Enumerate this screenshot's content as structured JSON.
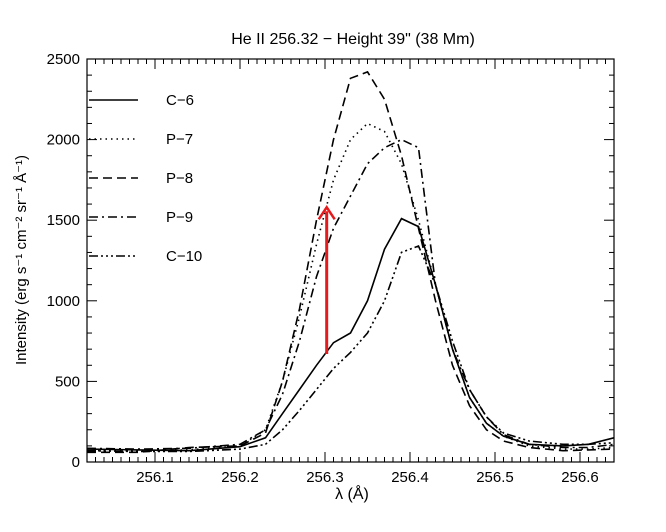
{
  "chart_data": {
    "type": "line",
    "title": "He II 256.32 − Height 39\" (38 Mm)",
    "xlabel": "λ (Å)",
    "ylabel": "Intensity (erg s⁻¹ cm⁻² sr⁻¹ Å⁻¹)",
    "xlim": [
      256.02,
      256.64
    ],
    "ylim": [
      0,
      2500
    ],
    "xticks": [
      256.1,
      256.2,
      256.3,
      256.4,
      256.5,
      256.6
    ],
    "xtick_labels": [
      "256.1",
      "256.2",
      "256.3",
      "256.4",
      "256.5",
      "256.6"
    ],
    "yticks": [
      0,
      500,
      1000,
      1500,
      2000,
      2500
    ],
    "ytick_labels": [
      "0",
      "500",
      "1000",
      "1500",
      "2000",
      "2500"
    ],
    "legend_position": "top-left",
    "series": [
      {
        "name": "C−6",
        "dash": "solid",
        "points": [
          [
            256.02,
            80
          ],
          [
            256.08,
            75
          ],
          [
            256.14,
            70
          ],
          [
            256.2,
            95
          ],
          [
            256.23,
            150
          ],
          [
            256.25,
            300
          ],
          [
            256.27,
            450
          ],
          [
            256.29,
            600
          ],
          [
            256.31,
            740
          ],
          [
            256.33,
            800
          ],
          [
            256.35,
            1000
          ],
          [
            256.37,
            1320
          ],
          [
            256.39,
            1510
          ],
          [
            256.41,
            1460
          ],
          [
            256.43,
            1100
          ],
          [
            256.45,
            700
          ],
          [
            256.47,
            400
          ],
          [
            256.49,
            240
          ],
          [
            256.51,
            160
          ],
          [
            256.54,
            110
          ],
          [
            256.58,
            100
          ],
          [
            256.61,
            110
          ],
          [
            256.64,
            150
          ]
        ]
      },
      {
        "name": "P−7",
        "dash": "dotted",
        "points": [
          [
            256.02,
            70
          ],
          [
            256.08,
            70
          ],
          [
            256.14,
            75
          ],
          [
            256.2,
            100
          ],
          [
            256.23,
            200
          ],
          [
            256.25,
            500
          ],
          [
            256.27,
            900
          ],
          [
            256.29,
            1350
          ],
          [
            256.31,
            1750
          ],
          [
            256.33,
            2000
          ],
          [
            256.35,
            2100
          ],
          [
            256.37,
            2050
          ],
          [
            256.39,
            1850
          ],
          [
            256.41,
            1500
          ],
          [
            256.43,
            1100
          ],
          [
            256.45,
            700
          ],
          [
            256.47,
            400
          ],
          [
            256.49,
            240
          ],
          [
            256.51,
            160
          ],
          [
            256.54,
            100
          ],
          [
            256.58,
            80
          ],
          [
            256.61,
            80
          ],
          [
            256.64,
            90
          ]
        ]
      },
      {
        "name": "P−8",
        "dash": "dashed",
        "points": [
          [
            256.02,
            60
          ],
          [
            256.08,
            60
          ],
          [
            256.14,
            90
          ],
          [
            256.2,
            100
          ],
          [
            256.23,
            180
          ],
          [
            256.25,
            500
          ],
          [
            256.27,
            950
          ],
          [
            256.29,
            1500
          ],
          [
            256.31,
            2000
          ],
          [
            256.33,
            2380
          ],
          [
            256.35,
            2420
          ],
          [
            256.37,
            2250
          ],
          [
            256.39,
            1900
          ],
          [
            256.41,
            1450
          ],
          [
            256.43,
            1000
          ],
          [
            256.45,
            600
          ],
          [
            256.47,
            350
          ],
          [
            256.49,
            200
          ],
          [
            256.51,
            130
          ],
          [
            256.54,
            90
          ],
          [
            256.58,
            70
          ],
          [
            256.61,
            75
          ],
          [
            256.64,
            80
          ]
        ]
      },
      {
        "name": "P−9",
        "dash": "dashdot",
        "points": [
          [
            256.02,
            85
          ],
          [
            256.08,
            80
          ],
          [
            256.14,
            85
          ],
          [
            256.2,
            110
          ],
          [
            256.23,
            200
          ],
          [
            256.25,
            420
          ],
          [
            256.27,
            750
          ],
          [
            256.29,
            1150
          ],
          [
            256.31,
            1450
          ],
          [
            256.33,
            1650
          ],
          [
            256.35,
            1850
          ],
          [
            256.37,
            1950
          ],
          [
            256.39,
            2000
          ],
          [
            256.41,
            1950
          ],
          [
            256.43,
            1100
          ],
          [
            256.45,
            700
          ],
          [
            256.47,
            450
          ],
          [
            256.49,
            280
          ],
          [
            256.51,
            170
          ],
          [
            256.54,
            110
          ],
          [
            256.58,
            90
          ],
          [
            256.61,
            90
          ],
          [
            256.64,
            110
          ]
        ]
      },
      {
        "name": "C−10",
        "dash": "dashdotdotdot",
        "points": [
          [
            256.02,
            70
          ],
          [
            256.08,
            65
          ],
          [
            256.14,
            65
          ],
          [
            256.2,
            80
          ],
          [
            256.23,
            110
          ],
          [
            256.25,
            200
          ],
          [
            256.27,
            320
          ],
          [
            256.29,
            450
          ],
          [
            256.31,
            580
          ],
          [
            256.33,
            680
          ],
          [
            256.35,
            800
          ],
          [
            256.37,
            1000
          ],
          [
            256.39,
            1300
          ],
          [
            256.41,
            1340
          ],
          [
            256.43,
            1100
          ],
          [
            256.45,
            750
          ],
          [
            256.47,
            450
          ],
          [
            256.49,
            280
          ],
          [
            256.51,
            180
          ],
          [
            256.54,
            130
          ],
          [
            256.58,
            110
          ],
          [
            256.61,
            110
          ],
          [
            256.64,
            120
          ]
        ]
      }
    ],
    "arrow": {
      "x": 256.302,
      "y_start": 670,
      "y_end": 1580,
      "color": "#e41a1c"
    }
  }
}
